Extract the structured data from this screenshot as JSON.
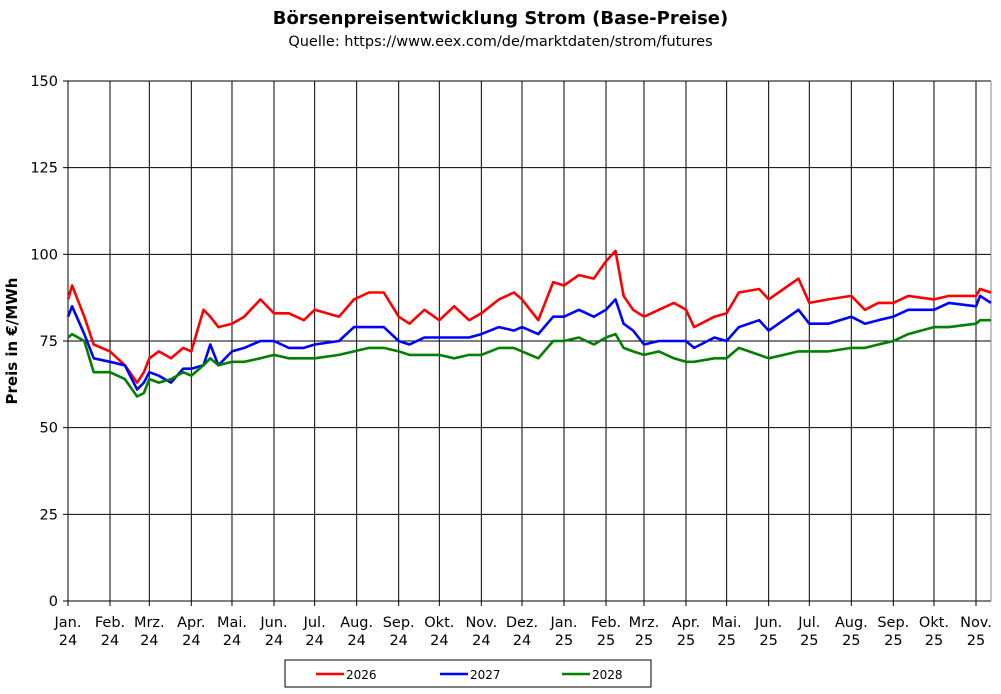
{
  "chart_data": {
    "type": "line",
    "title": "Börsenpreisentwicklung Strom (Base-Preise)",
    "subtitle": "Quelle:  https://www.eex.com/de/marktdaten/strom/futures",
    "ylabel": "Preis in €/MWh",
    "xlabel": "",
    "ylim": [
      0,
      150
    ],
    "yticks": [
      0,
      25,
      50,
      75,
      100,
      125,
      150
    ],
    "xlim": [
      "2024-01-01",
      "2025-11-12"
    ],
    "xticks": [
      {
        "date": "2024-01-01",
        "label": [
          "Jan.",
          "24"
        ]
      },
      {
        "date": "2024-02-01",
        "label": [
          "Feb.",
          "24"
        ]
      },
      {
        "date": "2024-03-01",
        "label": [
          "Mrz.",
          "24"
        ]
      },
      {
        "date": "2024-04-01",
        "label": [
          "Apr.",
          "24"
        ]
      },
      {
        "date": "2024-05-01",
        "label": [
          "Mai.",
          "24"
        ]
      },
      {
        "date": "2024-06-01",
        "label": [
          "Jun.",
          "24"
        ]
      },
      {
        "date": "2024-07-01",
        "label": [
          "Jul.",
          "24"
        ]
      },
      {
        "date": "2024-08-01",
        "label": [
          "Aug.",
          "24"
        ]
      },
      {
        "date": "2024-09-01",
        "label": [
          "Sep.",
          "24"
        ]
      },
      {
        "date": "2024-10-01",
        "label": [
          "Okt.",
          "24"
        ]
      },
      {
        "date": "2024-11-01",
        "label": [
          "Nov.",
          "24"
        ]
      },
      {
        "date": "2024-12-01",
        "label": [
          "Dez.",
          "24"
        ]
      },
      {
        "date": "2025-01-01",
        "label": [
          "Jan.",
          "25"
        ]
      },
      {
        "date": "2025-02-01",
        "label": [
          "Feb.",
          "25"
        ]
      },
      {
        "date": "2025-03-01",
        "label": [
          "Mrz.",
          "25"
        ]
      },
      {
        "date": "2025-04-01",
        "label": [
          "Apr.",
          "25"
        ]
      },
      {
        "date": "2025-05-01",
        "label": [
          "Mai.",
          "25"
        ]
      },
      {
        "date": "2025-06-01",
        "label": [
          "Jun.",
          "25"
        ]
      },
      {
        "date": "2025-07-01",
        "label": [
          "Jul.",
          "25"
        ]
      },
      {
        "date": "2025-08-01",
        "label": [
          "Aug.",
          "25"
        ]
      },
      {
        "date": "2025-09-01",
        "label": [
          "Sep.",
          "25"
        ]
      },
      {
        "date": "2025-10-01",
        "label": [
          "Okt.",
          "25"
        ]
      },
      {
        "date": "2025-11-01",
        "label": [
          "Nov.",
          "25"
        ]
      }
    ],
    "grid": true,
    "legend_position": "bottom",
    "x": [
      "2024-01-01",
      "2024-01-04",
      "2024-01-13",
      "2024-01-20",
      "2024-02-01",
      "2024-02-12",
      "2024-02-21",
      "2024-02-26",
      "2024-03-01",
      "2024-03-08",
      "2024-03-17",
      "2024-03-26",
      "2024-04-01",
      "2024-04-10",
      "2024-04-15",
      "2024-04-21",
      "2024-05-01",
      "2024-05-10",
      "2024-05-22",
      "2024-06-01",
      "2024-06-12",
      "2024-06-23",
      "2024-07-01",
      "2024-07-19",
      "2024-07-30",
      "2024-08-10",
      "2024-08-21",
      "2024-09-01",
      "2024-09-09",
      "2024-09-20",
      "2024-10-01",
      "2024-10-12",
      "2024-10-23",
      "2024-11-01",
      "2024-11-14",
      "2024-11-25",
      "2024-12-01",
      "2024-12-13",
      "2024-12-24",
      "2025-01-01",
      "2025-01-12",
      "2025-01-23",
      "2025-02-01",
      "2025-02-08",
      "2025-02-14",
      "2025-02-21",
      "2025-03-01",
      "2025-03-12",
      "2025-03-23",
      "2025-04-01",
      "2025-04-07",
      "2025-04-22",
      "2025-05-01",
      "2025-05-10",
      "2025-05-25",
      "2025-06-01",
      "2025-06-12",
      "2025-06-23",
      "2025-07-01",
      "2025-07-15",
      "2025-08-01",
      "2025-08-11",
      "2025-08-21",
      "2025-09-01",
      "2025-09-12",
      "2025-10-01",
      "2025-10-12",
      "2025-11-01",
      "2025-11-04",
      "2025-11-12"
    ],
    "series": [
      {
        "name": "2026",
        "color": "#ff0000",
        "values": [
          87,
          91,
          82,
          74,
          72,
          68,
          63,
          66,
          70,
          72,
          70,
          73,
          72,
          84,
          82,
          79,
          80,
          82,
          87,
          83,
          83,
          81,
          84,
          82,
          87,
          89,
          89,
          82,
          80,
          84,
          81,
          85,
          81,
          83,
          87,
          89,
          87,
          81,
          92,
          91,
          94,
          93,
          98,
          101,
          88,
          84,
          82,
          84,
          86,
          84,
          79,
          82,
          83,
          89,
          90,
          87,
          90,
          93,
          86,
          87,
          88,
          84,
          86,
          86,
          88,
          87,
          88,
          88,
          90,
          89
        ]
      },
      {
        "name": "2027",
        "color": "#0000ff",
        "values": [
          82,
          85,
          77,
          70,
          69,
          68,
          61,
          63,
          66,
          65,
          63,
          67,
          67,
          68,
          74,
          68,
          72,
          73,
          75,
          75,
          73,
          73,
          74,
          75,
          79,
          79,
          79,
          75,
          74,
          76,
          76,
          76,
          76,
          77,
          79,
          78,
          79,
          77,
          82,
          82,
          84,
          82,
          84,
          87,
          80,
          78,
          74,
          75,
          75,
          75,
          73,
          76,
          75,
          79,
          81,
          78,
          81,
          84,
          80,
          80,
          82,
          80,
          81,
          82,
          84,
          84,
          86,
          85,
          88,
          86
        ]
      },
      {
        "name": "2028",
        "color": "#008000",
        "values": [
          76,
          77,
          75,
          66,
          66,
          64,
          59,
          60,
          64,
          63,
          64,
          66,
          65,
          68,
          70,
          68,
          69,
          69,
          70,
          71,
          70,
          70,
          70,
          71,
          72,
          73,
          73,
          72,
          71,
          71,
          71,
          70,
          71,
          71,
          73,
          73,
          72,
          70,
          75,
          75,
          76,
          74,
          76,
          77,
          73,
          72,
          71,
          72,
          70,
          69,
          69,
          70,
          70,
          73,
          71,
          70,
          71,
          72,
          72,
          72,
          73,
          73,
          74,
          75,
          77,
          79,
          79,
          80,
          81,
          81
        ]
      }
    ]
  }
}
